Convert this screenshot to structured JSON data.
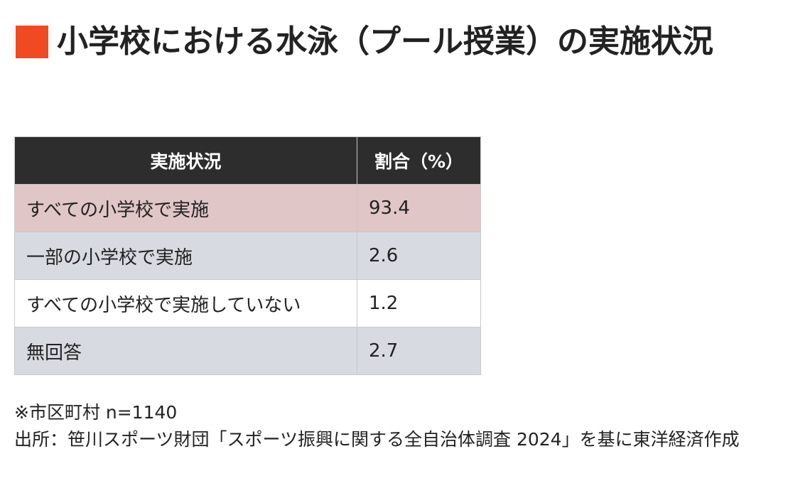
{
  "title": "小学校における水泳（プール授業）の実施状況",
  "table": {
    "headers": [
      "実施状況",
      "割合（%）"
    ],
    "rows": [
      {
        "status": "すべての小学校で実施",
        "percent": "93.4"
      },
      {
        "status": "一部の小学校で実施",
        "percent": "2.6"
      },
      {
        "status": "すべての小学校で実施していない",
        "percent": "1.2"
      },
      {
        "status": "無回答",
        "percent": "2.7"
      }
    ]
  },
  "notes": {
    "sample": "※市区町村 n=1140",
    "source": "出所：笹川スポーツ財団「スポーツ振興に関する全自治体調査 2024」を基に東洋経済作成"
  },
  "colors": {
    "title_marker": "#f04a23",
    "header_bg": "#2d2d2d",
    "highlight_row": "#e0c6c6",
    "shaded_row": "#d7dae1"
  }
}
